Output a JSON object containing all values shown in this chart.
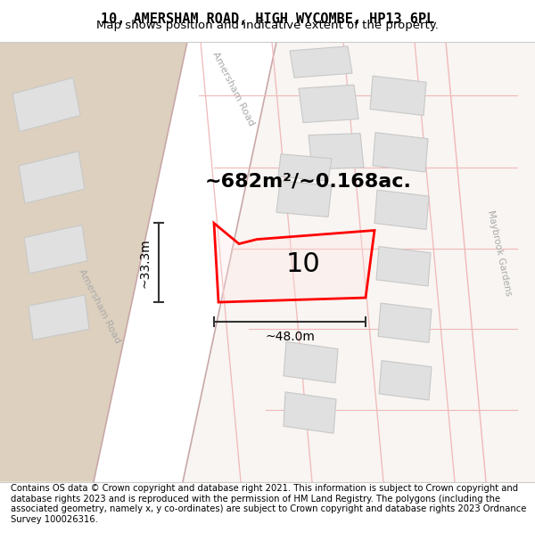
{
  "title_line1": "10, AMERSHAM ROAD, HIGH WYCOMBE, HP13 6PL",
  "title_line2": "Map shows position and indicative extent of the property.",
  "footer_text": "Contains OS data © Crown copyright and database right 2021. This information is subject to Crown copyright and database rights 2023 and is reproduced with the permission of HM Land Registry. The polygons (including the associated geometry, namely x, y co-ordinates) are subject to Crown copyright and database rights 2023 Ordnance Survey 100026316.",
  "area_label": "~682m²/~0.168ac.",
  "property_number": "10",
  "width_label": "~48.0m",
  "height_label": "~33.3m",
  "map_bg": "#f2ece4",
  "road_bg": "#ffffff",
  "building_fill": "#e0e0e0",
  "building_stroke": "#c8c8c8",
  "road_line_color": "#f0b8b8",
  "highlight_fill": [
    1.0,
    0.9,
    0.9,
    0.3
  ],
  "highlight_stroke": "#ff0000",
  "dark_area_fill": "#ddd0be",
  "light_area_fill": "#f8f5f2",
  "arrow_color": "#333333",
  "road_text_color": "#aaaaaa",
  "title_fontsize": 11,
  "subtitle_fontsize": 9.5,
  "footer_fontsize": 7.2,
  "area_fontsize": 16,
  "property_num_fontsize": 22,
  "measure_fontsize": 10,
  "road_label_fontsize": 8
}
